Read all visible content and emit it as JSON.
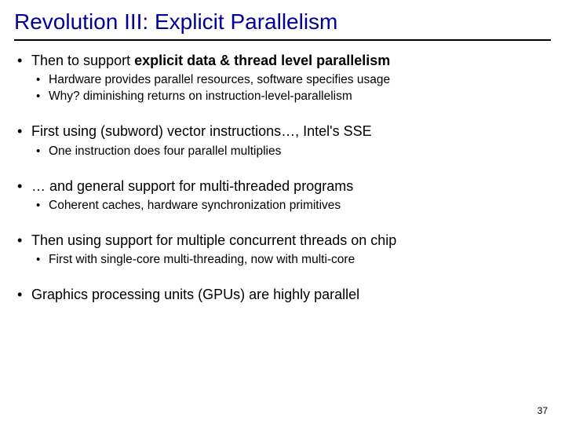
{
  "title": "Revolution III: Explicit Parallelism",
  "title_color": "#000099",
  "background_color": "#ffffff",
  "bullets": [
    {
      "prefix": "Then to support ",
      "bold": "explicit data & thread level parallelism",
      "suffix": "",
      "sub": [
        "Hardware provides parallel resources, software specifies usage",
        "Why? diminishing returns on instruction-level-parallelism"
      ]
    },
    {
      "prefix": "First using (subword) vector instructions…, Intel's SSE",
      "bold": "",
      "suffix": "",
      "sub": [
        "One instruction does four parallel multiplies"
      ]
    },
    {
      "prefix": "… and general support for multi-threaded programs",
      "bold": "",
      "suffix": "",
      "sub": [
        "Coherent caches, hardware synchronization primitives"
      ]
    },
    {
      "prefix": "Then using support for multiple concurrent threads on chip",
      "bold": "",
      "suffix": "",
      "sub": [
        "First with single-core multi-threading, now with multi-core"
      ]
    },
    {
      "prefix": "Graphics processing units (GPUs) are highly parallel",
      "bold": "",
      "suffix": "",
      "sub": []
    }
  ],
  "page_number": "37"
}
